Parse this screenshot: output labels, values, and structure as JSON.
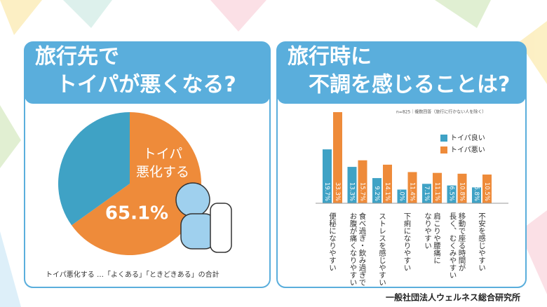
{
  "chart_data": [
    {
      "type": "pie",
      "title": [
        "旅行先で",
        "トイパが悪くなる?"
      ],
      "categories": [
        [
          "トイパ",
          "悪化する"
        ],
        null
      ],
      "values": [
        65.1,
        34.9
      ],
      "value_labels": [
        "65.1%",
        null
      ],
      "colors": [
        "#ee8b3a",
        "#3fa2c5"
      ],
      "footnote": "トイパ悪化する …「よくある」「ときどきある」の合計"
    },
    {
      "type": "bar",
      "title": [
        "旅行時に",
        "不調を感じることは?"
      ],
      "note": "n=825｜複数回答（旅行に行かない人を除く）",
      "categories": [
        [
          "便秘になりやすい"
        ],
        [
          "食べ過ぎ・飲み過ぎで",
          "お腹が痛くなりやすい"
        ],
        [
          "ストレスを感じやすい"
        ],
        [
          "下痢になりやすい"
        ],
        [
          "肩こりや腰痛に",
          "なりやすい"
        ],
        [
          "移動で座る時間が",
          "長く、むくみやすい"
        ],
        [
          "不安を感じやすい"
        ]
      ],
      "series": [
        {
          "name": "トイパ良い",
          "color": "#3fa2c5",
          "values": [
            19.7,
            13.3,
            9.2,
            5.0,
            7.1,
            6.5,
            5.8
          ],
          "value_labels": [
            "19.7%",
            "13.3%",
            "9.2%",
            "5.0%",
            "7.1%",
            "6.5%",
            "5.8%"
          ]
        },
        {
          "name": "トイパ悪い",
          "color": "#ee8b3a",
          "values": [
            33.3,
            15.7,
            14.1,
            11.4,
            11.1,
            10.8,
            10.5
          ],
          "value_labels": [
            "33.3%",
            "15.7%",
            "14.1%",
            "11.4%",
            "11.1%",
            "10.8%",
            "10.5%"
          ]
        }
      ]
    }
  ],
  "source": "一般社団法人ウェルネス総合研究所"
}
